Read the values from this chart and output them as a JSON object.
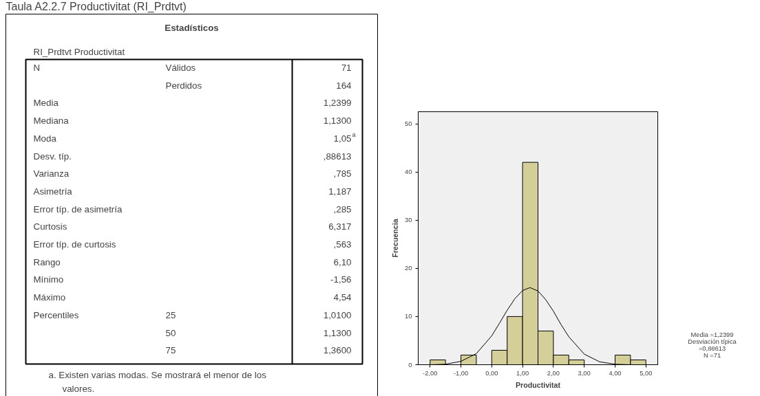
{
  "chart_data": [
    {
      "type": "other",
      "title": "Estadísticos",
      "subtitle": "RI_Prdtvt  Productivitat",
      "categories": [
        "N",
        null,
        "Media",
        "Mediana",
        "Moda",
        "Desv. típ.",
        "Varianza",
        "Asimetría",
        "Error típ. de asimetría",
        "Curtosis",
        "Error típ. de curtosis",
        "Rango",
        "Mínimo",
        "Máximo",
        "Percentiles",
        null,
        null
      ],
      "y_categories": [
        "Válidos",
        "Perdidos",
        null,
        null,
        null,
        null,
        null,
        null,
        null,
        null,
        null,
        null,
        null,
        null,
        "25",
        "50",
        "75"
      ],
      "value_labels": [
        "71",
        "164",
        "1,2399",
        "1,1300",
        "1,05$^{a}$",
        ",88613",
        ",785",
        "1,187",
        ",285",
        "6,317",
        ",563",
        "6,10",
        "-1,56",
        "4,54",
        "1,0100",
        "1,1300",
        "1,3600"
      ],
      "annotations": [
        "Taula A2.2.7 Productivitat (RI_Prdtvt)",
        "a. Existen varias modas. Se mostrará el menor de los valores."
      ]
    },
    {
      "type": "histogram",
      "xlabel": "Productivitat",
      "ylabel": "Frecuencia",
      "color": "#d4cf98",
      "bins": [
        -2.0,
        -1.5,
        -1.0,
        -0.5,
        0.0,
        0.5,
        1.0,
        1.5,
        2.0,
        2.5,
        3.0,
        3.5,
        4.0,
        4.5,
        5.0
      ],
      "values": [
        1,
        0,
        2,
        0,
        3,
        10,
        42,
        7,
        2,
        1,
        0,
        0,
        2,
        1
      ],
      "series": [
        {
          "type": "line",
          "color": "#000000",
          "x": [
            -2.0,
            -1.5,
            -1.0,
            -0.5,
            0.0,
            0.25,
            0.5,
            0.75,
            1.0,
            1.24,
            1.5,
            1.75,
            2.0,
            2.25,
            2.5,
            3.0,
            3.5,
            4.0,
            4.5
          ],
          "values": [
            0.0,
            0.1,
            0.7,
            2.3,
            6.0,
            8.6,
            11.3,
            13.7,
            15.4,
            16.0,
            15.3,
            13.5,
            11.1,
            8.3,
            5.8,
            2.2,
            0.6,
            0.1,
            0.0
          ]
        }
      ],
      "xlim": [
        -2.385,
        5.385
      ],
      "ylim": [
        0,
        52.5
      ],
      "xticks": [
        {
          "value": -2,
          "label": "-2,00"
        },
        {
          "value": -1,
          "label": "-1,00"
        },
        {
          "value": 0,
          "label": "0,00"
        },
        {
          "value": 1,
          "label": "1,00"
        },
        {
          "value": 2,
          "label": "2,00"
        },
        {
          "value": 3,
          "label": "3,00"
        },
        {
          "value": 4,
          "label": "4,00"
        },
        {
          "value": 5,
          "label": "5,00"
        }
      ],
      "yticks": [
        0,
        10,
        20,
        30,
        40,
        50
      ],
      "grid": false,
      "annotations": [
        "Media =1,2399",
        "Desviación típica =0,88613",
        "N =71"
      ]
    }
  ]
}
